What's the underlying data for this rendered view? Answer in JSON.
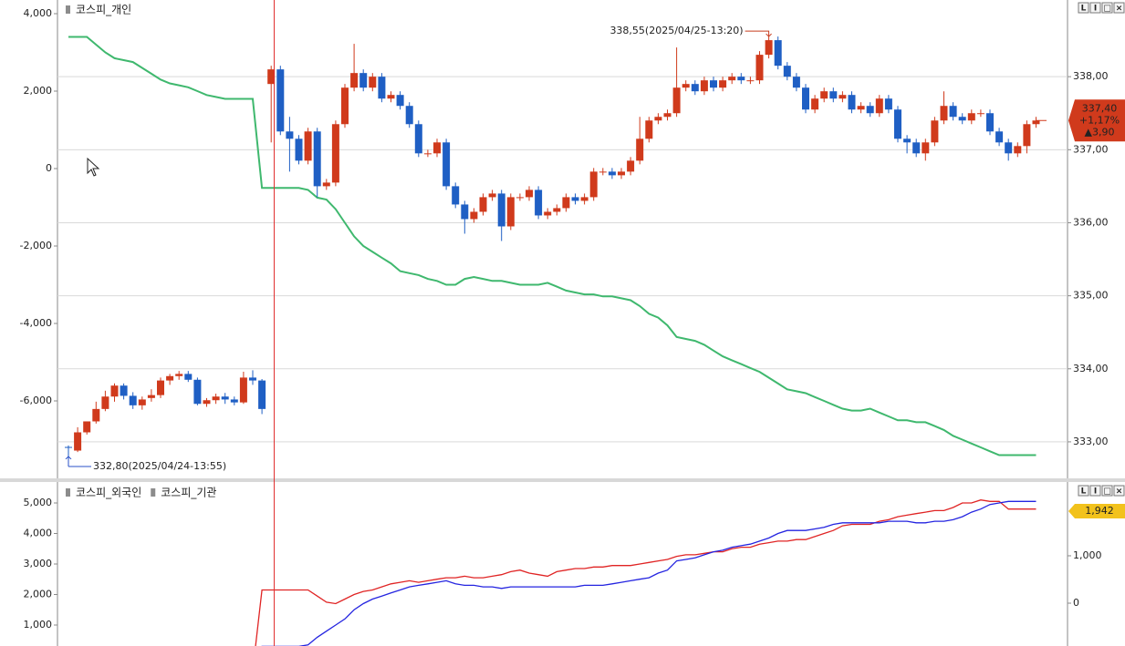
{
  "panel_buttons": [
    "L",
    "I",
    "□",
    "×"
  ],
  "chart_data": [
    {
      "type": "candlestick",
      "ylim": [
        -8000,
        4353
      ],
      "yticks": [
        {
          "value": 4000,
          "label": "4,000"
        },
        {
          "value": 2000,
          "label": "2,000"
        },
        0,
        {
          "value": -2000,
          "label": "-2,000"
        },
        {
          "value": -4000,
          "label": "-4,000"
        },
        {
          "value": -6000,
          "label": "-6,000"
        }
      ],
      "y2lim": [
        332.5,
        339.05
      ],
      "y2ticks": [
        {
          "value": 338,
          "label": "338,00"
        },
        {
          "value": 337,
          "label": "337,00"
        },
        {
          "value": 336,
          "label": "336,00"
        },
        {
          "value": 335,
          "label": "335,00"
        },
        {
          "value": 334,
          "label": "334,00"
        },
        {
          "value": 333,
          "label": "333,00"
        }
      ],
      "grid": true,
      "candles": {
        "axis": "y2",
        "up_color": "#d03a1c",
        "down_color": "#1f5fc4",
        "open": [
          332.93,
          332.88,
          333.13,
          333.28,
          333.45,
          333.62,
          333.77,
          333.63,
          333.5,
          333.6,
          333.64,
          333.84,
          333.9,
          333.93,
          333.85,
          333.52,
          333.57,
          333.62,
          333.58,
          333.54,
          333.88,
          333.84,
          337.9,
          338.1,
          337.25,
          337.15,
          336.85,
          337.25,
          336.5,
          336.55,
          337.35,
          337.85,
          338.05,
          337.85,
          338.0,
          337.7,
          337.75,
          337.6,
          337.35,
          336.95,
          336.95,
          337.1,
          336.5,
          336.25,
          336.05,
          336.15,
          336.35,
          336.4,
          335.95,
          336.35,
          336.35,
          336.45,
          336.1,
          336.15,
          336.2,
          336.35,
          336.3,
          336.35,
          336.7,
          336.7,
          336.65,
          336.7,
          336.85,
          337.15,
          337.4,
          337.45,
          337.5,
          337.85,
          337.9,
          337.8,
          337.95,
          337.85,
          337.95,
          338.0,
          337.95,
          337.95,
          338.3,
          338.5,
          338.15,
          338.0,
          337.85,
          337.55,
          337.7,
          337.8,
          337.7,
          337.75,
          337.55,
          337.6,
          337.5,
          337.7,
          337.55,
          337.15,
          337.1,
          336.95,
          337.1,
          337.4,
          337.6,
          337.45,
          337.4,
          337.5,
          337.5,
          337.25,
          337.1,
          336.95,
          337.05,
          337.35
        ],
        "high": [
          332.95,
          333.2,
          333.28,
          333.55,
          333.7,
          333.8,
          333.8,
          333.68,
          333.62,
          333.72,
          333.88,
          333.93,
          333.97,
          333.97,
          333.88,
          333.6,
          333.66,
          333.67,
          333.62,
          333.96,
          333.98,
          333.86,
          338.15,
          338.15,
          337.45,
          337.2,
          337.3,
          337.3,
          336.6,
          337.4,
          337.9,
          338.45,
          338.1,
          338.05,
          338.05,
          337.8,
          337.8,
          337.65,
          337.4,
          337.0,
          337.15,
          337.15,
          336.55,
          336.3,
          336.2,
          336.4,
          336.45,
          336.45,
          336.4,
          336.4,
          336.5,
          336.5,
          336.2,
          336.25,
          336.4,
          336.4,
          336.4,
          336.75,
          336.75,
          336.75,
          336.75,
          336.9,
          337.45,
          337.45,
          337.5,
          337.55,
          338.4,
          337.95,
          337.95,
          338.0,
          338.0,
          338.0,
          338.05,
          338.05,
          338.0,
          338.35,
          338.55,
          338.55,
          338.2,
          338.05,
          337.9,
          337.75,
          337.85,
          337.85,
          337.8,
          337.8,
          337.65,
          337.65,
          337.75,
          337.75,
          337.6,
          337.2,
          337.15,
          337.15,
          337.45,
          337.8,
          337.65,
          337.5,
          337.55,
          337.55,
          337.55,
          337.3,
          337.15,
          337.1,
          337.4,
          337.45
        ],
        "low": [
          332.8,
          332.86,
          333.1,
          333.25,
          333.42,
          333.55,
          333.58,
          333.45,
          333.44,
          333.55,
          333.6,
          333.78,
          333.85,
          333.82,
          333.5,
          333.48,
          333.52,
          333.52,
          333.5,
          333.52,
          333.78,
          333.38,
          337.1,
          337.2,
          336.7,
          336.8,
          336.8,
          336.35,
          336.45,
          336.5,
          337.3,
          337.8,
          337.8,
          337.8,
          337.65,
          337.65,
          337.55,
          337.3,
          336.9,
          336.9,
          336.9,
          336.45,
          336.2,
          335.85,
          336.0,
          336.1,
          336.3,
          335.75,
          335.9,
          336.3,
          336.3,
          336.05,
          336.05,
          336.1,
          336.15,
          336.25,
          336.25,
          336.3,
          336.65,
          336.6,
          336.6,
          336.65,
          336.8,
          337.1,
          337.35,
          337.4,
          337.45,
          337.8,
          337.75,
          337.75,
          337.8,
          337.8,
          337.9,
          337.9,
          337.9,
          337.9,
          338.25,
          338.1,
          337.95,
          337.8,
          337.5,
          337.5,
          337.65,
          337.65,
          337.65,
          337.5,
          337.5,
          337.45,
          337.45,
          337.5,
          337.1,
          336.95,
          336.9,
          336.85,
          337.05,
          337.35,
          337.4,
          337.35,
          337.35,
          337.45,
          337.2,
          337.05,
          336.85,
          336.9,
          336.95,
          337.3
        ],
        "close": [
          332.92,
          333.13,
          333.28,
          333.45,
          333.62,
          333.77,
          333.63,
          333.5,
          333.58,
          333.64,
          333.84,
          333.9,
          333.93,
          333.85,
          333.52,
          333.57,
          333.62,
          333.58,
          333.54,
          333.88,
          333.84,
          333.45,
          338.1,
          337.25,
          337.15,
          336.85,
          337.25,
          336.5,
          336.55,
          337.35,
          337.85,
          338.05,
          337.85,
          338.0,
          337.7,
          337.75,
          337.6,
          337.35,
          336.95,
          336.95,
          337.1,
          336.5,
          336.25,
          336.05,
          336.15,
          336.35,
          336.4,
          335.95,
          336.35,
          336.35,
          336.45,
          336.1,
          336.15,
          336.2,
          336.35,
          336.3,
          336.35,
          336.7,
          336.7,
          336.65,
          336.7,
          336.85,
          337.15,
          337.4,
          337.45,
          337.5,
          337.85,
          337.9,
          337.8,
          337.95,
          337.85,
          337.95,
          338.0,
          337.95,
          337.95,
          338.3,
          338.5,
          338.15,
          338.0,
          337.85,
          337.55,
          337.7,
          337.8,
          337.7,
          337.75,
          337.55,
          337.6,
          337.5,
          337.7,
          337.55,
          337.15,
          337.1,
          336.95,
          337.1,
          337.4,
          337.6,
          337.45,
          337.4,
          337.5,
          337.5,
          337.25,
          337.1,
          336.95,
          337.05,
          337.35,
          337.4
        ]
      },
      "series": [
        {
          "name": "코스피_개인",
          "color": "#3fb86e",
          "values": [
            3400,
            3400,
            3400,
            3200,
            3000,
            2850,
            2800,
            2750,
            2600,
            2450,
            2300,
            2200,
            2150,
            2100,
            2000,
            1900,
            1850,
            1800,
            1800,
            1800,
            1800,
            -500,
            -500,
            -500,
            -500,
            -500,
            -550,
            -750,
            -800,
            -1050,
            -1400,
            -1750,
            -2000,
            -2150,
            -2300,
            -2450,
            -2650,
            -2700,
            -2750,
            -2850,
            -2900,
            -3000,
            -3000,
            -2850,
            -2800,
            -2850,
            -2900,
            -2900,
            -2950,
            -3000,
            -3000,
            -3000,
            -2950,
            -3050,
            -3150,
            -3200,
            -3250,
            -3250,
            -3300,
            -3300,
            -3350,
            -3400,
            -3550,
            -3750,
            -3850,
            -4050,
            -4350,
            -4400,
            -4450,
            -4550,
            -4700,
            -4850,
            -4950,
            -5050,
            -5150,
            -5250,
            -5400,
            -5550,
            -5700,
            -5750,
            -5800,
            -5900,
            -6000,
            -6100,
            -6200,
            -6250,
            -6250,
            -6200,
            -6300,
            -6400,
            -6500,
            -6500,
            -6550,
            -6550,
            -6650,
            -6750,
            -6900,
            -7000,
            -7100,
            -7200,
            -7300,
            -7400,
            -7400,
            -7400,
            -7400,
            -7400
          ]
        }
      ],
      "annotations": [
        {
          "text": "338,55(2025/04/25-13:20)",
          "value": 338.55
        },
        {
          "text": "332,80(2025/04/24-13:55)",
          "value": 332.8
        }
      ],
      "last_price": {
        "value": 337.4,
        "label": "337,40",
        "change_pct": "+1,17%",
        "change": "▲3,90",
        "color": "#d03a1c"
      }
    },
    {
      "type": "line",
      "ylim": [
        313,
        5657
      ],
      "yticks": [
        {
          "value": 5000,
          "label": "5,000"
        },
        {
          "value": 4000,
          "label": "4,000"
        },
        {
          "value": 3000,
          "label": "3,000"
        },
        {
          "value": 2000,
          "label": "2,000"
        },
        {
          "value": 1000,
          "label": "1,000"
        }
      ],
      "y2lim": [
        -904,
        2538
      ],
      "y2ticks": [
        {
          "value": 1000,
          "label": "1,000"
        },
        0
      ],
      "grid": false,
      "series": [
        {
          "name": "코스피_외국인",
          "color": "#e02424",
          "values": [
            null,
            null,
            null,
            null,
            null,
            null,
            null,
            null,
            null,
            null,
            null,
            null,
            null,
            null,
            null,
            null,
            null,
            null,
            null,
            null,
            -500,
            2150,
            2150,
            2150,
            2150,
            2150,
            2150,
            1950,
            1750,
            1700,
            1850,
            2000,
            2100,
            2150,
            2250,
            2350,
            2400,
            2450,
            2400,
            2450,
            2500,
            2550,
            2550,
            2600,
            2550,
            2550,
            2600,
            2650,
            2750,
            2800,
            2700,
            2650,
            2600,
            2750,
            2800,
            2850,
            2850,
            2900,
            2900,
            2950,
            2950,
            2950,
            3000,
            3050,
            3100,
            3150,
            3250,
            3300,
            3300,
            3350,
            3400,
            3400,
            3500,
            3550,
            3550,
            3650,
            3700,
            3750,
            3750,
            3800,
            3800,
            3900,
            4000,
            4100,
            4250,
            4300,
            4300,
            4300,
            4400,
            4450,
            4550,
            4600,
            4650,
            4700,
            4750,
            4750,
            4850,
            5000,
            5000,
            5100,
            5050,
            5050,
            4800,
            4800,
            4800,
            4800
          ]
        },
        {
          "name": "코스피_기관",
          "color": "#2424e0",
          "values": [
            null,
            null,
            null,
            null,
            null,
            null,
            null,
            null,
            null,
            null,
            null,
            null,
            null,
            null,
            null,
            null,
            null,
            null,
            null,
            null,
            -500,
            300,
            300,
            300,
            300,
            300,
            350,
            600,
            800,
            1000,
            1200,
            1500,
            1700,
            1850,
            1950,
            2050,
            2150,
            2250,
            2300,
            2350,
            2400,
            2450,
            2350,
            2300,
            2300,
            2250,
            2250,
            2200,
            2250,
            2250,
            2250,
            2250,
            2250,
            2250,
            2250,
            2250,
            2300,
            2300,
            2300,
            2350,
            2400,
            2450,
            2500,
            2550,
            2700,
            2800,
            3100,
            3150,
            3200,
            3300,
            3400,
            3450,
            3550,
            3600,
            3650,
            3750,
            3850,
            4000,
            4100,
            4100,
            4100,
            4150,
            4200,
            4300,
            4350,
            4350,
            4350,
            4350,
            4350,
            4400,
            4400,
            4400,
            4350,
            4350,
            4400,
            4400,
            4450,
            4550,
            4700,
            4800,
            4950,
            5000,
            5050,
            5050,
            5050,
            5050
          ]
        }
      ],
      "value_tag": {
        "value": 1942,
        "label": "1,942",
        "axis": "y2",
        "color": "#f2c21c"
      }
    }
  ]
}
